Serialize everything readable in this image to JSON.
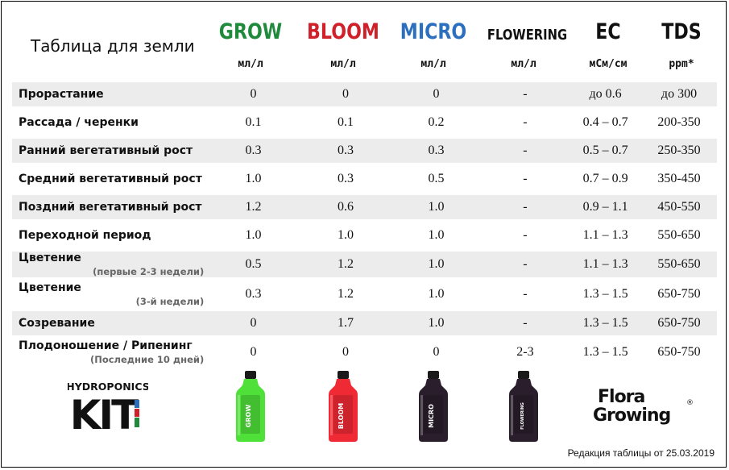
{
  "title": "Таблица для земли",
  "columns": [
    {
      "name": "GROW",
      "unit": "мл/л",
      "color": "#1f8a3c"
    },
    {
      "name": "BLOOM",
      "unit": "мл/л",
      "color": "#d0202a"
    },
    {
      "name": "MICRO",
      "unit": "мл/л",
      "color": "#2d6fbf"
    },
    {
      "name": "FLOWERING",
      "unit": "мл/л",
      "color": "#111111"
    },
    {
      "name": "EC",
      "unit": "мСм/см",
      "color": "#111111"
    },
    {
      "name": "TDS",
      "unit": "ppm*",
      "color": "#111111"
    }
  ],
  "rows": [
    {
      "label": "Прорастание",
      "sub": "",
      "values": [
        "0",
        "0",
        "0",
        "-",
        "до 0.6",
        "до 300"
      ]
    },
    {
      "label": "Рассада / черенки",
      "sub": "",
      "values": [
        "0.1",
        "0.1",
        "0.2",
        "-",
        "0.4 – 0.7",
        "200-350"
      ]
    },
    {
      "label": "Ранний вегетативный рост",
      "sub": "",
      "values": [
        "0.3",
        "0.3",
        "0.3",
        "-",
        "0.5 – 0.7",
        "250-350"
      ]
    },
    {
      "label": "Средний вегетативный рост",
      "sub": "",
      "values": [
        "1.0",
        "0.3",
        "0.5",
        "-",
        "0.7 – 0.9",
        "350-450"
      ]
    },
    {
      "label": "Поздний вегетативный рост",
      "sub": "",
      "values": [
        "1.2",
        "0.6",
        "1.0",
        "-",
        "0.9 – 1.1",
        "450-550"
      ]
    },
    {
      "label": "Переходной период",
      "sub": "",
      "values": [
        "1.0",
        "1.0",
        "1.0",
        "-",
        "1.1 – 1.3",
        "550-650"
      ]
    },
    {
      "label": "Цветение",
      "sub": "(первые 2-3 недели)",
      "values": [
        "0.5",
        "1.2",
        "1.0",
        "-",
        "1.1 – 1.3",
        "550-650"
      ]
    },
    {
      "label": "Цветение",
      "sub": "(3-й недели)",
      "values": [
        "0.3",
        "1.2",
        "1.0",
        "-",
        "1.3 – 1.5",
        "650-750"
      ]
    },
    {
      "label": "Созревание",
      "sub": "",
      "values": [
        "0",
        "1.7",
        "1.0",
        "-",
        "1.3 – 1.5",
        "650-750"
      ]
    },
    {
      "label": "Плодоношение / Рипенинг",
      "sub": "(Последние 10 дней)",
      "values": [
        "0",
        "0",
        "0",
        "2-3",
        "1.3 – 1.5",
        "650-750"
      ]
    }
  ],
  "logos": {
    "kit_top": "HYDROPONICS",
    "kit_main": "KIT",
    "flora_line1": "Flora",
    "flora_line2": "Growing",
    "flora_mark": "®"
  },
  "bottles": [
    {
      "label": "GROW",
      "color": "#4fe03a"
    },
    {
      "label": "BLOOM",
      "color": "#f02a35"
    },
    {
      "label": "MICRO",
      "color": "#2a1e2c"
    },
    {
      "label": "FLOWERING",
      "color": "#2a1e2c"
    }
  ],
  "footer": "Редакция таблицы от 25.03.2019"
}
